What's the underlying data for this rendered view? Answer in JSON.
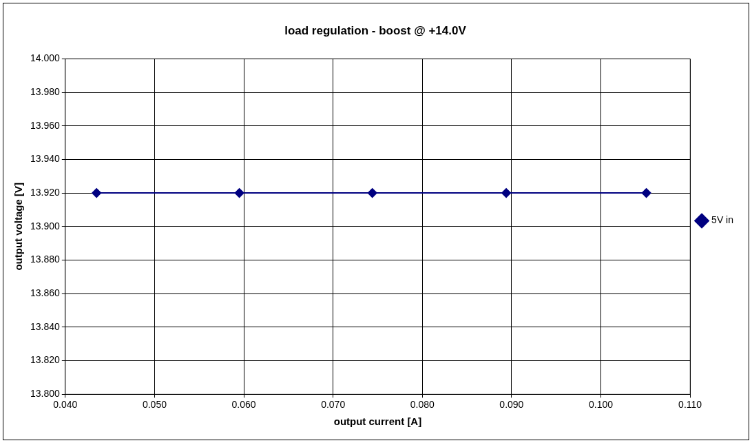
{
  "chart_data": {
    "type": "line",
    "title": "load regulation - boost @ +14.0V",
    "xlabel": "output current [A]",
    "ylabel": "output voltage [V]",
    "series": [
      {
        "name": "5V in",
        "color": "#000080",
        "x": [
          0.0435,
          0.0595,
          0.0744,
          0.0894,
          0.1051
        ],
        "values": [
          13.92,
          13.92,
          13.92,
          13.92,
          13.92
        ]
      }
    ],
    "xlim": [
      0.04,
      0.11
    ],
    "xticks": [
      {
        "value": 0.04,
        "label": "0.040"
      },
      {
        "value": 0.05,
        "label": "0.050"
      },
      {
        "value": 0.06,
        "label": "0.060"
      },
      {
        "value": 0.07,
        "label": "0.070"
      },
      {
        "value": 0.08,
        "label": "0.080"
      },
      {
        "value": 0.09,
        "label": "0.090"
      },
      {
        "value": 0.1,
        "label": "0.100"
      },
      {
        "value": 0.11,
        "label": "0.110"
      }
    ],
    "ylim": [
      13.8,
      14.0
    ],
    "yticks": [
      {
        "value": 13.8,
        "label": "13.800"
      },
      {
        "value": 13.82,
        "label": "13.820"
      },
      {
        "value": 13.84,
        "label": "13.840"
      },
      {
        "value": 13.86,
        "label": "13.860"
      },
      {
        "value": 13.88,
        "label": "13.880"
      },
      {
        "value": 13.9,
        "label": "13.900"
      },
      {
        "value": 13.92,
        "label": "13.920"
      },
      {
        "value": 13.94,
        "label": "13.940"
      },
      {
        "value": 13.96,
        "label": "13.960"
      },
      {
        "value": 13.98,
        "label": "13.980"
      },
      {
        "value": 14.0,
        "label": "14.000"
      }
    ],
    "grid": true,
    "legend": "right",
    "marker": "diamond",
    "line_style": "solid"
  }
}
